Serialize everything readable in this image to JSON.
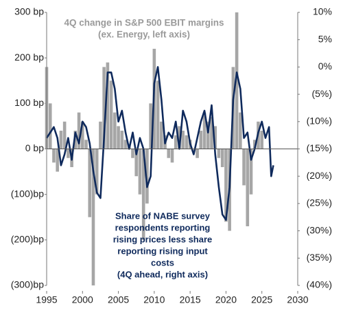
{
  "chart_data": {
    "type": "bar-line",
    "annotations": [
      {
        "lines": [
          "4Q change in  S&P 500 EBIT margins",
          "(ex. Energy, left axis)"
        ]
      },
      {
        "lines": [
          "Share of NABE survey",
          "respondents reporting",
          "rising prices less share",
          "reporting rising input",
          "costs",
          "(4Q ahead, right axis)"
        ]
      }
    ],
    "series": [
      {
        "color": "#a6a6a6",
        "x": [
          1995.0,
          1995.5,
          1996.0,
          1996.5,
          1997.0,
          1997.5,
          1998.0,
          1998.5,
          1999.0,
          1999.5,
          2000.0,
          2000.5,
          2001.0,
          2001.5,
          2002.0,
          2002.5,
          2003.0,
          2003.5,
          2004.0,
          2004.5,
          2005.0,
          2005.5,
          2006.0,
          2006.5,
          2007.0,
          2007.5,
          2008.0,
          2008.5,
          2009.0,
          2009.5,
          2010.0,
          2010.5,
          2011.0,
          2011.5,
          2012.0,
          2012.5,
          2013.0,
          2013.5,
          2014.0,
          2014.5,
          2015.0,
          2015.5,
          2016.0,
          2016.5,
          2017.0,
          2017.5,
          2018.0,
          2018.5,
          2019.0,
          2019.5,
          2020.0,
          2020.5,
          2021.0,
          2021.5,
          2022.0,
          2022.5,
          2023.0,
          2023.5,
          2024.0,
          2024.5,
          2025.0
        ],
        "values": [
          180,
          100,
          -30,
          -50,
          40,
          60,
          -20,
          -40,
          40,
          80,
          60,
          20,
          -150,
          -300,
          -100,
          60,
          180,
          190,
          150,
          80,
          50,
          40,
          20,
          10,
          -20,
          -60,
          -100,
          -200,
          -120,
          100,
          220,
          150,
          60,
          30,
          -20,
          -30,
          30,
          50,
          40,
          30,
          20,
          0,
          -20,
          40,
          80,
          60,
          70,
          50,
          -20,
          -40,
          -160,
          -180,
          180,
          300,
          80,
          -80,
          -170,
          -100,
          20,
          60,
          40
        ]
      },
      {
        "color": "#0f2a5c",
        "axis": "y2",
        "x": [
          1995.0,
          1996.0,
          1996.5,
          1997.0,
          1997.5,
          1998.0,
          1998.5,
          1999.0,
          1999.5,
          2000.0,
          2000.5,
          2001.0,
          2001.5,
          2002.0,
          2002.5,
          2003.0,
          2003.5,
          2004.0,
          2004.5,
          2005.0,
          2005.5,
          2006.0,
          2006.5,
          2007.0,
          2007.5,
          2008.0,
          2008.5,
          2009.0,
          2009.5,
          2010.0,
          2010.5,
          2011.0,
          2011.5,
          2012.0,
          2012.5,
          2013.0,
          2013.5,
          2014.0,
          2014.5,
          2015.0,
          2015.5,
          2016.0,
          2016.5,
          2017.0,
          2017.5,
          2018.0,
          2018.5,
          2019.0,
          2019.5,
          2020.0,
          2020.5,
          2021.0,
          2021.5,
          2022.0,
          2022.5,
          2023.0,
          2023.5,
          2024.0,
          2024.5,
          2025.0,
          2025.5,
          2026.0,
          2026.3,
          2026.6
        ],
        "values": [
          -13,
          -11,
          -13,
          -18,
          -16,
          -13,
          -17,
          -12,
          -14,
          -10,
          -11,
          -14,
          -19,
          -23,
          -24,
          -13,
          -1,
          -1,
          -4,
          -10,
          -8,
          -12,
          -15,
          -12,
          -16,
          -13,
          -15,
          -22,
          -20,
          -3,
          0,
          -6,
          -14,
          -12,
          -13,
          -10,
          -15,
          -8,
          -10,
          -14,
          -16,
          -13,
          -10,
          -8,
          -12,
          -7,
          -16,
          -22,
          -27,
          -28,
          -22,
          -6,
          -1,
          -4,
          -13,
          -12,
          -17,
          -15,
          -12,
          -10,
          -13,
          -11,
          -20,
          -18
        ]
      }
    ],
    "xlim": [
      1995,
      2030
    ],
    "xticks": [
      1995,
      2000,
      2005,
      2010,
      2015,
      2020,
      2025,
      2030
    ],
    "ylim": [
      -300,
      300
    ],
    "yticks": [
      {
        "value": 300,
        "label": "300 bp"
      },
      {
        "value": 200,
        "label": "200 bp"
      },
      {
        "value": 100,
        "label": "100 bp"
      },
      {
        "value": 0,
        "label": "0 bp"
      },
      {
        "value": -100,
        "label": "(100)bp"
      },
      {
        "value": -200,
        "label": "(200)bp"
      },
      {
        "value": -300,
        "label": "(300)bp"
      }
    ],
    "y2lim": [
      -40,
      10
    ],
    "y2ticks": [
      {
        "value": 10,
        "label": "10%"
      },
      {
        "value": 5,
        "label": "5%"
      },
      {
        "value": 0,
        "label": "0%"
      },
      {
        "value": -5,
        "label": "(5%)"
      },
      {
        "value": -10,
        "label": "(10%)"
      },
      {
        "value": -15,
        "label": "(15%)"
      },
      {
        "value": -20,
        "label": "(20%)"
      },
      {
        "value": -25,
        "label": "(25%)"
      },
      {
        "value": -30,
        "label": "(30%)"
      },
      {
        "value": -35,
        "label": "(35%)"
      },
      {
        "value": -40,
        "label": "(40%)"
      }
    ]
  }
}
